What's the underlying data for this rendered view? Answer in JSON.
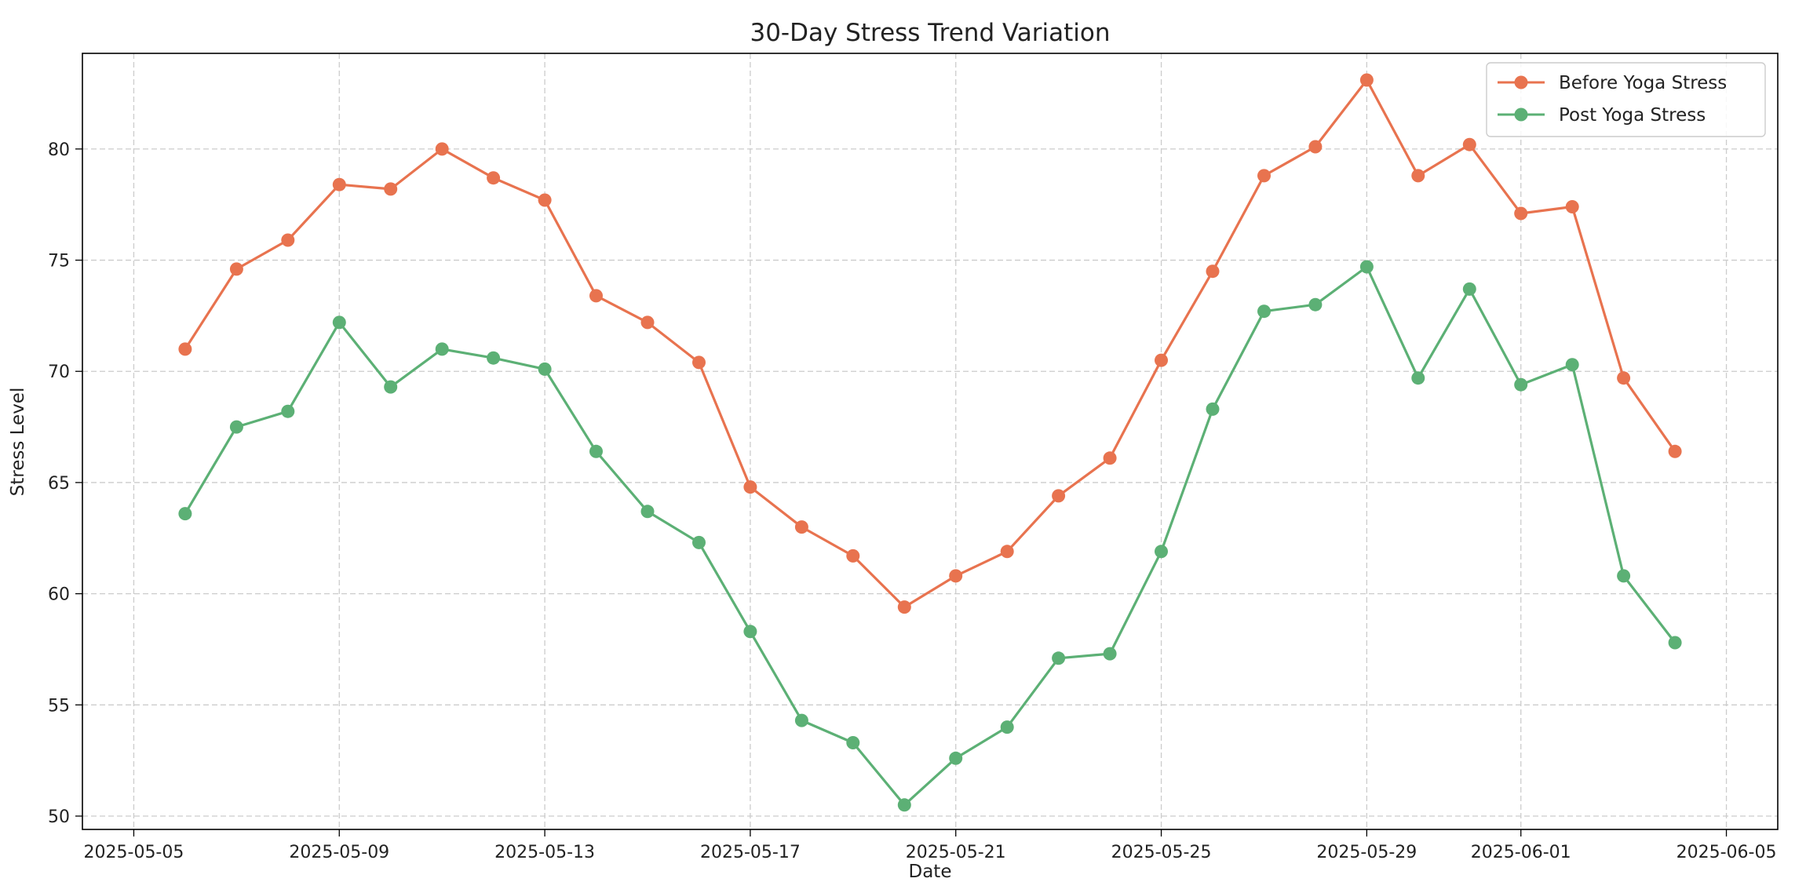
{
  "chart_data": {
    "type": "line",
    "title": "30-Day Stress Trend Variation",
    "xlabel": "Date",
    "ylabel": "Stress Level",
    "x": [
      "2025-05-06",
      "2025-05-07",
      "2025-05-08",
      "2025-05-09",
      "2025-05-10",
      "2025-05-11",
      "2025-05-12",
      "2025-05-13",
      "2025-05-14",
      "2025-05-15",
      "2025-05-16",
      "2025-05-17",
      "2025-05-18",
      "2025-05-19",
      "2025-05-20",
      "2025-05-21",
      "2025-05-22",
      "2025-05-23",
      "2025-05-24",
      "2025-05-25",
      "2025-05-26",
      "2025-05-27",
      "2025-05-28",
      "2025-05-29",
      "2025-05-30",
      "2025-05-31",
      "2025-06-01",
      "2025-06-02",
      "2025-06-03",
      "2025-06-04"
    ],
    "series": [
      {
        "name": "Before Yoga Stress",
        "color": "#e8734f",
        "values": [
          71.0,
          74.6,
          75.9,
          78.4,
          78.2,
          80.0,
          78.7,
          77.7,
          73.4,
          72.2,
          70.4,
          64.8,
          63.0,
          61.7,
          59.4,
          60.8,
          61.9,
          64.4,
          66.1,
          70.5,
          74.5,
          78.8,
          80.1,
          83.1,
          78.8,
          80.2,
          77.1,
          77.4,
          69.7,
          66.4
        ]
      },
      {
        "name": "Post Yoga Stress",
        "color": "#5cb075",
        "values": [
          63.6,
          67.5,
          68.2,
          72.2,
          69.3,
          71.0,
          70.6,
          70.1,
          66.4,
          63.7,
          62.3,
          58.3,
          54.3,
          53.3,
          50.5,
          52.6,
          54.0,
          57.1,
          57.3,
          61.9,
          68.3,
          72.7,
          73.0,
          74.7,
          69.7,
          73.7,
          69.4,
          70.3,
          60.8,
          57.8
        ]
      }
    ],
    "x_ticks": [
      "2025-05-05",
      "2025-05-09",
      "2025-05-13",
      "2025-05-17",
      "2025-05-21",
      "2025-05-25",
      "2025-05-29",
      "2025-06-01",
      "2025-06-05"
    ],
    "xlim": [
      "2025-05-04",
      "2025-06-06"
    ],
    "y_ticks": [
      50,
      55,
      60,
      65,
      70,
      75,
      80
    ],
    "ylim": [
      49.4,
      84.3
    ],
    "grid": true,
    "legend_position": "top-right"
  }
}
